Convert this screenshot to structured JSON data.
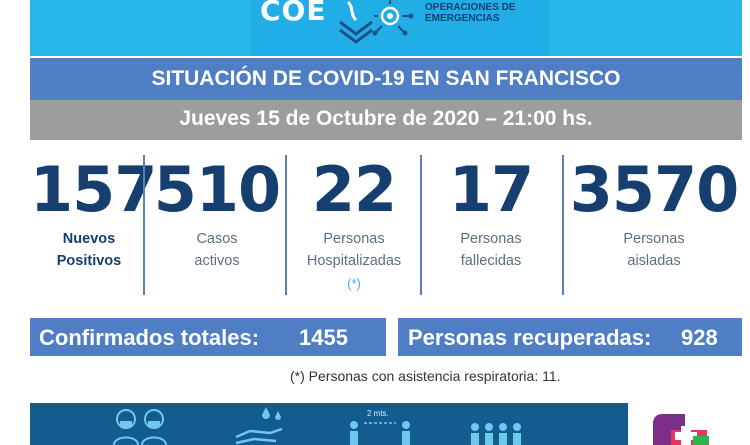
{
  "header": {
    "logo_text": "COE",
    "subtitle_line1": "OPERACIONES DE",
    "subtitle_line2": "EMERGENCIAS"
  },
  "title": "SITUACIÓN DE COVID-19 EN SAN FRANCISCO",
  "date": "Jueves 15 de Octubre de 2020 – 21:00 hs.",
  "stats": [
    {
      "value": "157",
      "label1": "Nuevos",
      "label2": "Positivos"
    },
    {
      "value": "510",
      "label1": "Casos",
      "label2": "activos"
    },
    {
      "value": "22",
      "label1": "Personas",
      "label2": "Hospitalizadas",
      "mark": "(*)"
    },
    {
      "value": "17",
      "label1": "Personas",
      "label2": "fallecidas"
    },
    {
      "value": "3570",
      "label1": "Personas",
      "label2": "aisladas"
    }
  ],
  "totals": {
    "confirmed_label": "Confirmados totales:",
    "confirmed_value": "1455",
    "recovered_label": "Personas recuperadas:",
    "recovered_value": "928"
  },
  "footnote": "(*) Personas con asistencia respiratoria: 11.",
  "banner": {
    "distance_text": "2 mts.",
    "icons": [
      "masked-people-icon",
      "hand-washing-icon",
      "social-distance-icon",
      "group-icon",
      "health-logo-icon"
    ]
  },
  "colors": {
    "top_bar": "#27b6e9",
    "title_bar": "#4f7ec4",
    "date_bar": "#9d9d9d",
    "number_text": "#163f70",
    "banner": "#135d8e"
  }
}
